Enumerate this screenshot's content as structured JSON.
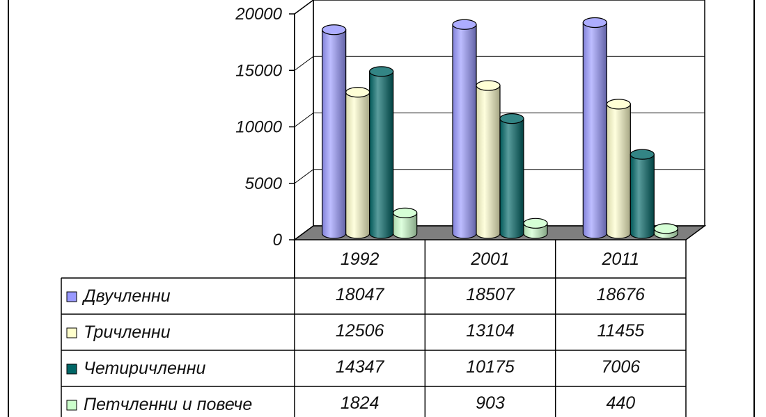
{
  "colors": {
    "background": "#ffffff",
    "wall": "#ffffff",
    "floor": "#7f7f7f",
    "gridline": "#000000"
  },
  "chart_data": {
    "type": "bar",
    "title": "",
    "xlabel": "",
    "ylabel": "",
    "ylim": [
      0,
      20000
    ],
    "yticks": [
      0,
      5000,
      10000,
      15000,
      20000
    ],
    "grid": true,
    "style": "3d-cylinder",
    "legend_placement": "left of data table",
    "categories": [
      "1992",
      "2001",
      "2011"
    ],
    "series": [
      {
        "name": "Двучленни",
        "color": "#9999ff",
        "values": [
          18047,
          18507,
          18676
        ]
      },
      {
        "name": "Тричленни",
        "color": "#ffffcc",
        "values": [
          12506,
          13104,
          11455
        ]
      },
      {
        "name": "Четиричленни",
        "color": "#006666",
        "values": [
          14347,
          10175,
          7006
        ]
      },
      {
        "name": "Петчленни и повече",
        "color": "#ccffcc",
        "values": [
          1824,
          903,
          440
        ]
      }
    ]
  }
}
